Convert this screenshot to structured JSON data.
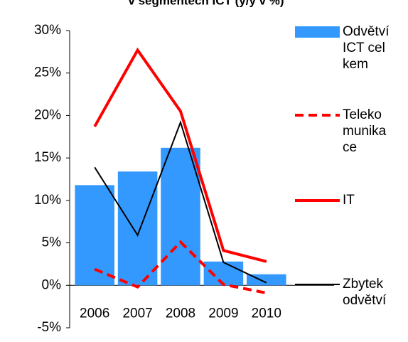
{
  "chart_data": {
    "type": "bar-line",
    "title": "v segmentech ICT (y/y v %)",
    "categories": [
      "2006",
      "2007",
      "2008",
      "2009",
      "2010"
    ],
    "series": [
      {
        "name": "Odvětví ICT celkem",
        "type": "bar",
        "color": "#3399ff",
        "values": [
          11.8,
          13.4,
          16.2,
          2.8,
          1.3
        ]
      },
      {
        "name": "Telekomunikace",
        "type": "line",
        "style": "dashed",
        "color": "#ff0000",
        "values": [
          1.9,
          -0.2,
          5.1,
          0.1,
          -0.9
        ]
      },
      {
        "name": "IT",
        "type": "line",
        "style": "solid",
        "color": "#ff0000",
        "values": [
          18.7,
          27.7,
          20.5,
          4.1,
          2.8
        ]
      },
      {
        "name": "Zbytek odvětví",
        "type": "line",
        "style": "thin",
        "color": "#000000",
        "values": [
          13.9,
          5.9,
          19.2,
          2.7,
          0.3
        ]
      }
    ],
    "ylim": [
      -5,
      30
    ],
    "yticks": [
      {
        "value": -5,
        "label": "-5%"
      },
      {
        "value": 0,
        "label": "0%"
      },
      {
        "value": 5,
        "label": "5%"
      },
      {
        "value": 10,
        "label": "10%"
      },
      {
        "value": 15,
        "label": "15%"
      },
      {
        "value": 20,
        "label": "20%"
      },
      {
        "value": 25,
        "label": "25%"
      },
      {
        "value": 30,
        "label": "30%"
      }
    ],
    "legend": "right"
  }
}
